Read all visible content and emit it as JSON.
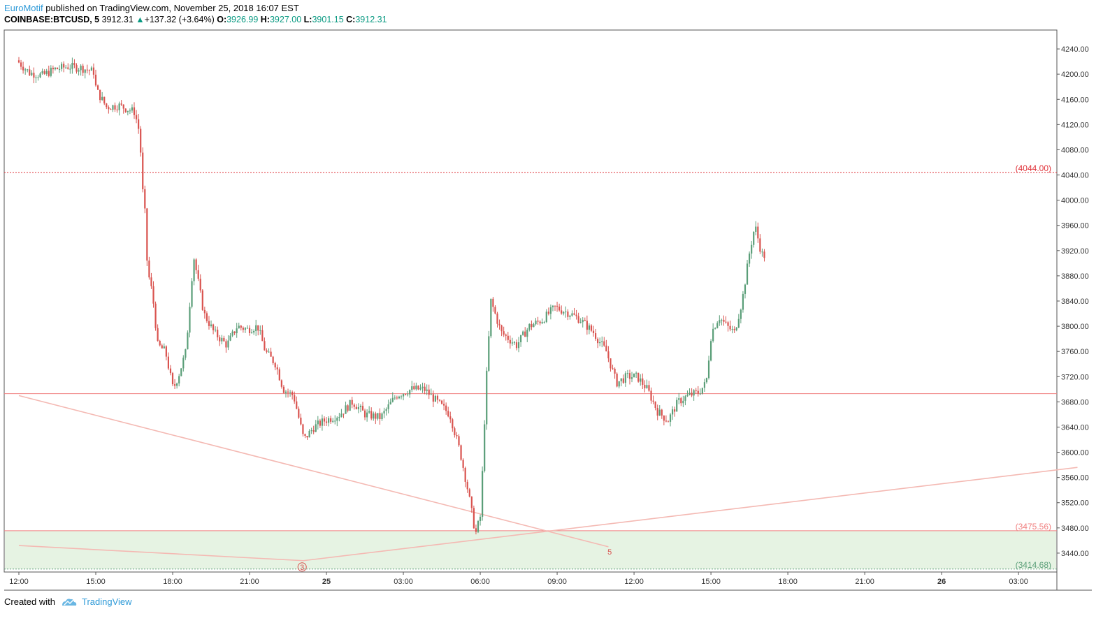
{
  "header": {
    "author": "EuroMotif",
    "published_text": " published on TradingView.com, November 25, 2018 16:07 EST",
    "symbol": "COINBASE:BTCUSD, 5",
    "last": "3912.31",
    "change_arrow": "▲",
    "change": "+137.32 (+3.64%)",
    "o_label": "O:",
    "o_value": "3926.99",
    "h_label": "H:",
    "h_value": "3927.00",
    "l_label": "L:",
    "l_value": "3901.15",
    "c_label": "C:",
    "c_value": "3912.31"
  },
  "footer": {
    "created_with": "Created with",
    "brand": "TradingView"
  },
  "colors": {
    "up": "#5a9e78",
    "down": "#d9534f",
    "resistance_line": "#e0333a",
    "support_zone": "#e6f3e3",
    "trend_line": "#f4b9b3",
    "grid_border": "#555555"
  },
  "chart_data": {
    "type": "candlestick",
    "y_axis": {
      "min": 3410,
      "max": 4270,
      "ticks": [
        "4240.00",
        "4200.00",
        "4160.00",
        "4120.00",
        "4080.00",
        "4040.00",
        "4000.00",
        "3960.00",
        "3920.00",
        "3880.00",
        "3840.00",
        "3800.00",
        "3760.00",
        "3720.00",
        "3680.00",
        "3640.00",
        "3600.00",
        "3560.00",
        "3520.00",
        "3480.00",
        "3440.00"
      ]
    },
    "x_axis": {
      "ticks": [
        "12:00",
        "15:00",
        "18:00",
        "21:00",
        "25",
        "03:00",
        "06:00",
        "09:00",
        "12:00",
        "15:00",
        "18:00",
        "21:00",
        "26",
        "03:00"
      ],
      "bold_ticks": [
        "25",
        "26"
      ]
    },
    "levels": [
      {
        "value": 4044.0,
        "label": "(4044.00)",
        "style": "dotted",
        "color": "#e0333a"
      },
      {
        "value": 3693,
        "label": "",
        "style": "solid",
        "color": "#f08080"
      },
      {
        "value": 3475.56,
        "label": "(3475.56)",
        "style": "solid",
        "color": "#f08080"
      },
      {
        "value": 3414.68,
        "label": "(3414.68)",
        "style": "dotted",
        "color": "#5a9e78"
      }
    ],
    "annotations": [
      {
        "text": "5",
        "time_index": 23.05,
        "price": 3442
      },
      {
        "text": "3",
        "time_index": 11.05,
        "price": 3418
      }
    ],
    "trend_lines": [
      {
        "from": {
          "t": 0.0,
          "p": 3690
        },
        "to": {
          "t": 23.0,
          "p": 3450
        }
      },
      {
        "from": {
          "t": 0.0,
          "p": 3452
        },
        "to": {
          "t": 11.1,
          "p": 3428
        }
      },
      {
        "from": {
          "t": 11.1,
          "p": 3428
        },
        "to": {
          "t": 41.3,
          "p": 3576
        }
      }
    ],
    "path": [
      [
        0.0,
        4222
      ],
      [
        0.5,
        4202
      ],
      [
        1.0,
        4198
      ],
      [
        1.5,
        4208
      ],
      [
        2.0,
        4212
      ],
      [
        2.5,
        4210
      ],
      [
        3.0,
        4204
      ],
      [
        3.1,
        4175
      ],
      [
        3.5,
        4148
      ],
      [
        4.0,
        4150
      ],
      [
        4.6,
        4140
      ],
      [
        4.8,
        4105
      ],
      [
        4.9,
        4020
      ],
      [
        5.0,
        3980
      ],
      [
        5.1,
        3890
      ],
      [
        5.3,
        3850
      ],
      [
        5.5,
        3770
      ],
      [
        5.8,
        3760
      ],
      [
        6.1,
        3700
      ],
      [
        6.3,
        3720
      ],
      [
        6.6,
        3760
      ],
      [
        6.9,
        3912
      ],
      [
        7.3,
        3820
      ],
      [
        7.7,
        3790
      ],
      [
        8.2,
        3770
      ],
      [
        8.6,
        3800
      ],
      [
        9.0,
        3795
      ],
      [
        9.4,
        3800
      ],
      [
        9.7,
        3760
      ],
      [
        10.1,
        3740
      ],
      [
        10.4,
        3700
      ],
      [
        10.8,
        3690
      ],
      [
        11.2,
        3620
      ],
      [
        11.6,
        3640
      ],
      [
        12.0,
        3650
      ],
      [
        12.6,
        3660
      ],
      [
        13.1,
        3680
      ],
      [
        13.6,
        3660
      ],
      [
        14.2,
        3655
      ],
      [
        14.8,
        3690
      ],
      [
        15.4,
        3700
      ],
      [
        15.9,
        3700
      ],
      [
        16.4,
        3680
      ],
      [
        16.9,
        3660
      ],
      [
        17.3,
        3600
      ],
      [
        17.6,
        3540
      ],
      [
        17.9,
        3470
      ],
      [
        18.1,
        3500
      ],
      [
        18.3,
        3700
      ],
      [
        18.5,
        3840
      ],
      [
        18.9,
        3790
      ],
      [
        19.5,
        3770
      ],
      [
        20.0,
        3800
      ],
      [
        20.5,
        3810
      ],
      [
        21.0,
        3830
      ],
      [
        21.6,
        3820
      ],
      [
        22.0,
        3810
      ],
      [
        22.5,
        3790
      ],
      [
        23.0,
        3760
      ],
      [
        23.4,
        3710
      ],
      [
        23.8,
        3720
      ],
      [
        24.2,
        3720
      ],
      [
        24.6,
        3700
      ],
      [
        25.0,
        3665
      ],
      [
        25.4,
        3650
      ],
      [
        25.8,
        3680
      ],
      [
        26.2,
        3690
      ],
      [
        26.6,
        3695
      ],
      [
        26.9,
        3710
      ],
      [
        27.1,
        3790
      ],
      [
        27.4,
        3815
      ],
      [
        27.7,
        3800
      ],
      [
        28.0,
        3790
      ],
      [
        28.3,
        3840
      ],
      [
        28.6,
        3920
      ],
      [
        28.8,
        3960
      ],
      [
        29.0,
        3925
      ],
      [
        29.1,
        3912
      ]
    ]
  }
}
